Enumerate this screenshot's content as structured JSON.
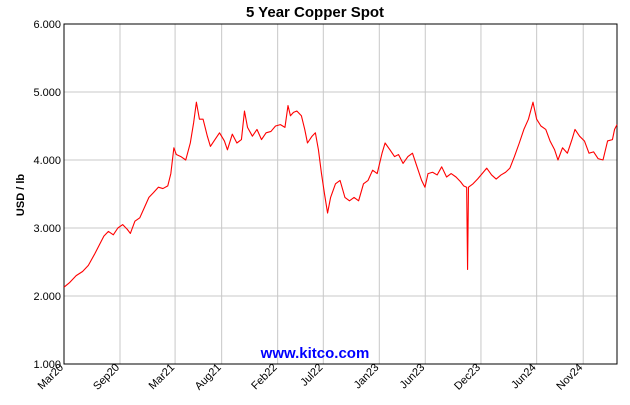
{
  "chart_data": {
    "type": "line",
    "title": "5 Year Copper Spot",
    "ylabel": "USD / lb",
    "xlabel": "",
    "ylim": [
      1.0,
      6.0
    ],
    "y_ticks": [
      1.0,
      2.0,
      3.0,
      4.0,
      5.0,
      6.0
    ],
    "y_tick_labels": [
      "1.000",
      "2.000",
      "3.000",
      "4.000",
      "5.000",
      "6.000"
    ],
    "x_range": [
      "2020-03-01",
      "2025-02-20"
    ],
    "x_ticks": [
      {
        "label": "Mar20",
        "date": "2020-03-01"
      },
      {
        "label": "Sep20",
        "date": "2020-09-01"
      },
      {
        "label": "Mar21",
        "date": "2021-03-01"
      },
      {
        "label": "Aug21",
        "date": "2021-08-01"
      },
      {
        "label": "Feb22",
        "date": "2022-02-01"
      },
      {
        "label": "Jul22",
        "date": "2022-07-01"
      },
      {
        "label": "Jan23",
        "date": "2023-01-01"
      },
      {
        "label": "Jun23",
        "date": "2023-06-01"
      },
      {
        "label": "Dec23",
        "date": "2023-12-01"
      },
      {
        "label": "Jun24",
        "date": "2024-06-01"
      },
      {
        "label": "Nov24",
        "date": "2024-11-01"
      }
    ],
    "grid": true,
    "series": [
      {
        "color": "#ff0000",
        "points": [
          [
            "2020-03-01",
            2.13
          ],
          [
            "2020-03-20",
            2.2
          ],
          [
            "2020-04-10",
            2.3
          ],
          [
            "2020-05-01",
            2.36
          ],
          [
            "2020-05-20",
            2.45
          ],
          [
            "2020-06-10",
            2.62
          ],
          [
            "2020-06-25",
            2.75
          ],
          [
            "2020-07-10",
            2.88
          ],
          [
            "2020-07-25",
            2.95
          ],
          [
            "2020-08-10",
            2.9
          ],
          [
            "2020-08-25",
            3.0
          ],
          [
            "2020-09-10",
            3.05
          ],
          [
            "2020-09-25",
            2.98
          ],
          [
            "2020-10-05",
            2.92
          ],
          [
            "2020-10-20",
            3.1
          ],
          [
            "2020-11-05",
            3.15
          ],
          [
            "2020-11-20",
            3.3
          ],
          [
            "2020-12-05",
            3.45
          ],
          [
            "2020-12-20",
            3.52
          ],
          [
            "2021-01-05",
            3.6
          ],
          [
            "2021-01-20",
            3.58
          ],
          [
            "2021-02-05",
            3.62
          ],
          [
            "2021-02-15",
            3.8
          ],
          [
            "2021-02-25",
            4.18
          ],
          [
            "2021-03-05",
            4.08
          ],
          [
            "2021-03-20",
            4.05
          ],
          [
            "2021-04-05",
            4.0
          ],
          [
            "2021-04-20",
            4.25
          ],
          [
            "2021-05-01",
            4.55
          ],
          [
            "2021-05-10",
            4.85
          ],
          [
            "2021-05-20",
            4.6
          ],
          [
            "2021-06-01",
            4.6
          ],
          [
            "2021-06-15",
            4.35
          ],
          [
            "2021-06-25",
            4.2
          ],
          [
            "2021-07-10",
            4.3
          ],
          [
            "2021-07-25",
            4.4
          ],
          [
            "2021-08-10",
            4.28
          ],
          [
            "2021-08-20",
            4.15
          ],
          [
            "2021-09-05",
            4.38
          ],
          [
            "2021-09-20",
            4.25
          ],
          [
            "2021-10-05",
            4.3
          ],
          [
            "2021-10-15",
            4.72
          ],
          [
            "2021-10-25",
            4.48
          ],
          [
            "2021-11-10",
            4.35
          ],
          [
            "2021-11-25",
            4.45
          ],
          [
            "2021-12-10",
            4.3
          ],
          [
            "2021-12-25",
            4.4
          ],
          [
            "2022-01-10",
            4.42
          ],
          [
            "2022-01-25",
            4.5
          ],
          [
            "2022-02-10",
            4.52
          ],
          [
            "2022-02-25",
            4.48
          ],
          [
            "2022-03-07",
            4.8
          ],
          [
            "2022-03-15",
            4.65
          ],
          [
            "2022-03-25",
            4.7
          ],
          [
            "2022-04-05",
            4.72
          ],
          [
            "2022-04-20",
            4.65
          ],
          [
            "2022-05-01",
            4.45
          ],
          [
            "2022-05-10",
            4.25
          ],
          [
            "2022-05-25",
            4.35
          ],
          [
            "2022-06-05",
            4.4
          ],
          [
            "2022-06-15",
            4.15
          ],
          [
            "2022-06-25",
            3.8
          ],
          [
            "2022-07-05",
            3.5
          ],
          [
            "2022-07-15",
            3.22
          ],
          [
            "2022-07-25",
            3.45
          ],
          [
            "2022-08-10",
            3.65
          ],
          [
            "2022-08-25",
            3.7
          ],
          [
            "2022-09-10",
            3.45
          ],
          [
            "2022-09-25",
            3.4
          ],
          [
            "2022-10-10",
            3.45
          ],
          [
            "2022-10-25",
            3.4
          ],
          [
            "2022-11-10",
            3.65
          ],
          [
            "2022-11-25",
            3.7
          ],
          [
            "2022-12-10",
            3.85
          ],
          [
            "2022-12-25",
            3.8
          ],
          [
            "2023-01-10",
            4.1
          ],
          [
            "2023-01-20",
            4.25
          ],
          [
            "2023-02-05",
            4.15
          ],
          [
            "2023-02-20",
            4.05
          ],
          [
            "2023-03-05",
            4.08
          ],
          [
            "2023-03-20",
            3.95
          ],
          [
            "2023-04-05",
            4.05
          ],
          [
            "2023-04-20",
            4.1
          ],
          [
            "2023-05-05",
            3.9
          ],
          [
            "2023-05-20",
            3.7
          ],
          [
            "2023-05-31",
            3.6
          ],
          [
            "2023-06-10",
            3.8
          ],
          [
            "2023-06-25",
            3.82
          ],
          [
            "2023-07-10",
            3.78
          ],
          [
            "2023-07-25",
            3.9
          ],
          [
            "2023-08-10",
            3.75
          ],
          [
            "2023-08-25",
            3.8
          ],
          [
            "2023-09-10",
            3.75
          ],
          [
            "2023-09-25",
            3.68
          ],
          [
            "2023-10-05",
            3.62
          ],
          [
            "2023-10-15",
            3.6
          ],
          [
            "2023-10-18",
            2.39
          ],
          [
            "2023-10-21",
            3.6
          ],
          [
            "2023-11-05",
            3.65
          ],
          [
            "2023-11-20",
            3.72
          ],
          [
            "2023-12-05",
            3.8
          ],
          [
            "2023-12-20",
            3.88
          ],
          [
            "2024-01-05",
            3.78
          ],
          [
            "2024-01-20",
            3.72
          ],
          [
            "2024-02-05",
            3.78
          ],
          [
            "2024-02-20",
            3.82
          ],
          [
            "2024-03-05",
            3.88
          ],
          [
            "2024-03-20",
            4.05
          ],
          [
            "2024-04-05",
            4.25
          ],
          [
            "2024-04-20",
            4.45
          ],
          [
            "2024-05-05",
            4.6
          ],
          [
            "2024-05-20",
            4.85
          ],
          [
            "2024-06-01",
            4.6
          ],
          [
            "2024-06-15",
            4.5
          ],
          [
            "2024-07-01",
            4.45
          ],
          [
            "2024-07-15",
            4.28
          ],
          [
            "2024-07-30",
            4.15
          ],
          [
            "2024-08-10",
            4.0
          ],
          [
            "2024-08-25",
            4.18
          ],
          [
            "2024-09-10",
            4.1
          ],
          [
            "2024-09-25",
            4.3
          ],
          [
            "2024-10-05",
            4.45
          ],
          [
            "2024-10-20",
            4.35
          ],
          [
            "2024-11-05",
            4.28
          ],
          [
            "2024-11-20",
            4.1
          ],
          [
            "2024-12-05",
            4.12
          ],
          [
            "2024-12-20",
            4.02
          ],
          [
            "2025-01-05",
            4.0
          ],
          [
            "2025-01-20",
            4.28
          ],
          [
            "2025-02-05",
            4.3
          ],
          [
            "2025-02-12",
            4.45
          ],
          [
            "2025-02-20",
            4.52
          ]
        ]
      }
    ]
  },
  "watermark": {
    "text": "www.kitco.com",
    "color": "#0000ff"
  }
}
